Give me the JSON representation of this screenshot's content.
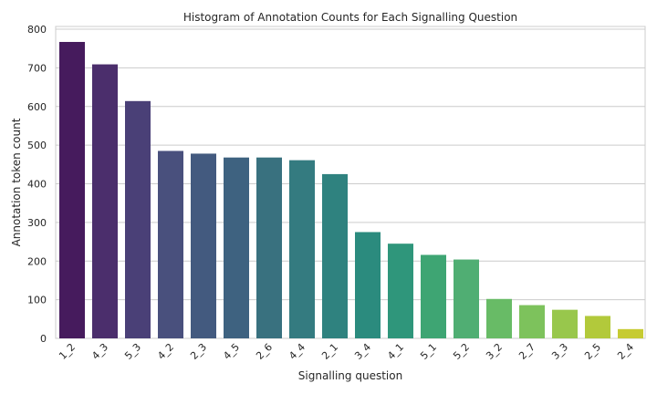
{
  "chart_data": {
    "type": "bar",
    "title": "Histogram of Annotation Counts for Each Signalling Question",
    "xlabel": "Signalling question",
    "ylabel": "Annotation token count",
    "categories": [
      "1_2",
      "4_3",
      "5_3",
      "4_2",
      "2_3",
      "4_5",
      "2_6",
      "4_4",
      "2_1",
      "3_4",
      "4_1",
      "5_1",
      "5_2",
      "3_2",
      "2_7",
      "3_3",
      "2_5",
      "2_4"
    ],
    "values": [
      767,
      709,
      614,
      485,
      478,
      468,
      468,
      461,
      425,
      275,
      245,
      216,
      204,
      102,
      86,
      74,
      58,
      24
    ],
    "ylim": [
      0,
      800
    ],
    "yticks": [
      0,
      100,
      200,
      300,
      400,
      500,
      600,
      700,
      800
    ],
    "grid": "horizontal",
    "colors": [
      "#461b5d",
      "#4b2e6c",
      "#4a4077",
      "#49507d",
      "#435a7f",
      "#3e6280",
      "#39717f",
      "#347b80",
      "#2f827f",
      "#2b8b7e",
      "#2f967b",
      "#3ea573",
      "#50ae73",
      "#68bb66",
      "#7dc25c",
      "#98c74c",
      "#b2c93b",
      "#c6cb33"
    ]
  }
}
